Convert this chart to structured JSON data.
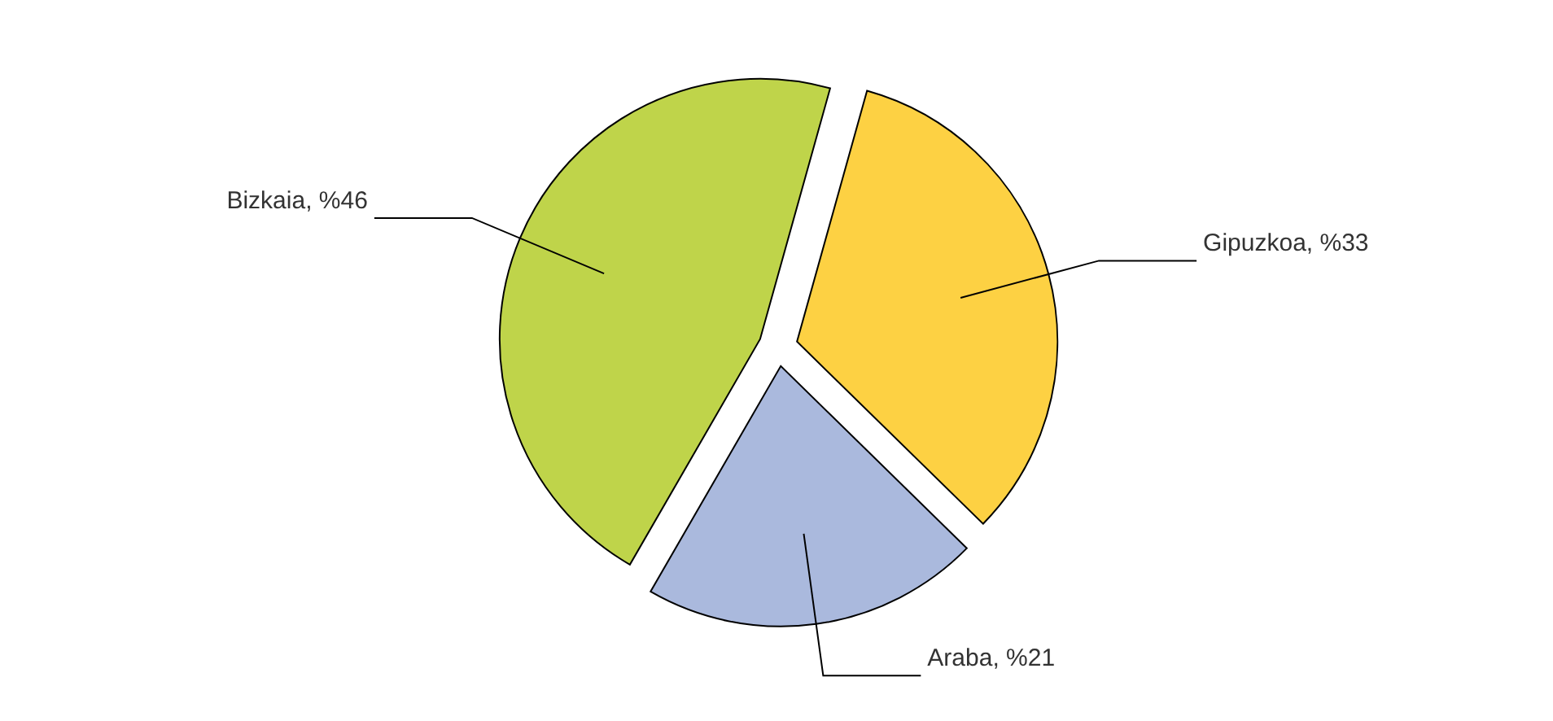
{
  "chart_data": {
    "type": "pie",
    "categories": [
      "Bizkaia",
      "Gipuzkoa",
      "Araba"
    ],
    "values": [
      46,
      33,
      21
    ],
    "colors": [
      "#bfd44a",
      "#fdd143",
      "#aab9dd"
    ],
    "value_labels": [
      "%46",
      "%33",
      "%21"
    ]
  }
}
